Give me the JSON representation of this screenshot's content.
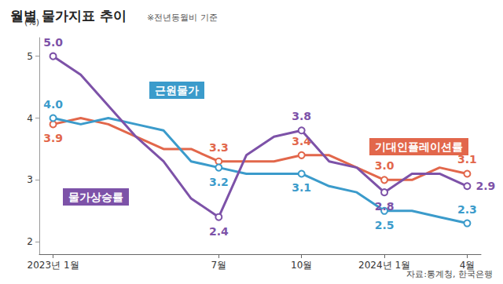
{
  "chart_data": {
    "type": "line",
    "title": "월별 물가지표 추이",
    "subtitle": "※전년동월비 기준",
    "y_label": "(%)",
    "source": "자료:통계청, 한국은행",
    "categories": [
      "2023년 1월",
      null,
      null,
      null,
      null,
      null,
      "7월",
      null,
      null,
      "10월",
      null,
      null,
      "2024년 1월",
      null,
      null,
      "4월"
    ],
    "series": [
      {
        "name": "물가상승률",
        "color": "#7d52a8",
        "values": [
          5.0,
          4.7,
          4.2,
          3.7,
          3.3,
          2.7,
          2.4,
          3.4,
          3.7,
          3.8,
          3.3,
          3.2,
          2.8,
          3.1,
          3.1,
          2.9
        ],
        "value_labels": [
          "5.0",
          null,
          null,
          null,
          null,
          null,
          "2.4",
          null,
          null,
          "3.8",
          null,
          null,
          "2.8",
          null,
          null,
          "2.9"
        ]
      },
      {
        "name": "근원물가",
        "color": "#3b9bcb",
        "values": [
          4.0,
          3.9,
          4.0,
          3.9,
          3.8,
          3.3,
          3.2,
          3.1,
          3.1,
          3.1,
          2.9,
          2.8,
          2.5,
          2.5,
          2.4,
          2.3
        ],
        "value_labels": [
          "4.0",
          null,
          null,
          null,
          null,
          null,
          "3.2",
          null,
          null,
          "3.1",
          null,
          null,
          "2.5",
          null,
          null,
          "2.3"
        ]
      },
      {
        "name": "기대인플레이션률",
        "color": "#e2674b",
        "values": [
          3.9,
          4.0,
          3.9,
          3.7,
          3.5,
          3.5,
          3.3,
          3.3,
          3.3,
          3.4,
          3.4,
          3.2,
          3.0,
          3.0,
          3.2,
          3.1
        ],
        "value_labels": [
          "3.9",
          null,
          null,
          null,
          null,
          null,
          "3.3",
          null,
          null,
          "3.4",
          null,
          null,
          "3.0",
          null,
          null,
          "3.1"
        ]
      }
    ],
    "ylim": [
      1.8,
      5.3
    ],
    "yticks": [
      2,
      3,
      4,
      5
    ],
    "grid": false,
    "data_labels": true,
    "marker": "circle"
  }
}
